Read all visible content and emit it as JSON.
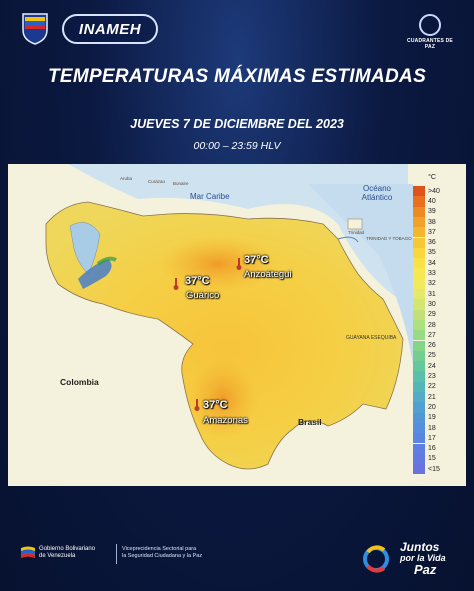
{
  "header": {
    "brand": "INAMEH",
    "partner_logo_text": "CUADRANTES DE PAZ"
  },
  "title": "TEMPERATURAS MÁXIMAS ESTIMADAS",
  "subtitle": "JUEVES 7 DE DICIEMBRE DEL 2023",
  "time_range": "00:00 – 23:59 HLV",
  "map": {
    "sea_labels": {
      "caribbean": "Mar Caribe",
      "atlantic": "Océano Atlántico"
    },
    "country_labels": {
      "colombia": "Colombia",
      "brasil": "Brasil",
      "guayana": "GUAYANA ESEQUIBA"
    },
    "minor_labels": {
      "aruba": "Aruba",
      "curazao": "Curazao",
      "bonaire": "Bonaire",
      "trinidad": "TRINIDAD Y TOBAGO",
      "trinidad_island": "Trinidad"
    },
    "highlights": [
      {
        "value": "37°C",
        "region": "Anzoátegui"
      },
      {
        "value": "37°C",
        "region": "Guárico"
      },
      {
        "value": "37°C",
        "region": "Amazonas"
      }
    ]
  },
  "legend": {
    "unit": "°C",
    "labels": [
      ">40",
      "40",
      "39",
      "38",
      "37",
      "36",
      "35",
      "34",
      "33",
      "32",
      "31",
      "30",
      "29",
      "28",
      "27",
      "26",
      "25",
      "24",
      "23",
      "22",
      "21",
      "20",
      "19",
      "18",
      "17",
      "16",
      "15",
      "<15"
    ],
    "colors": [
      "#e0521b",
      "#e8701f",
      "#ec8a23",
      "#f1a22a",
      "#f4b52f",
      "#f6c836",
      "#f8d83c",
      "#f9e246",
      "#f7e851",
      "#f1ea5d",
      "#e5e969",
      "#d4e572",
      "#c2df79",
      "#ade07f",
      "#98db84",
      "#84d58a",
      "#72cf91",
      "#64c89c",
      "#5ac0aa",
      "#55b6b8",
      "#53abc5",
      "#52a0d0",
      "#5396d8",
      "#568ddf",
      "#5a85e3",
      "#5f7ee4",
      "#6478e2",
      "#6a73dd"
    ]
  },
  "footer": {
    "gob_line1": "Gobierno Bolivariano",
    "gob_line2": "de Venezuela",
    "vice_line1": "Viceprecidencia Sectorial para",
    "vice_line2": "la Seguridad Ciudadana y la Paz",
    "juntos_line1": "Juntos",
    "juntos_line2": "por la Vida",
    "juntos_line3": "Paz"
  }
}
